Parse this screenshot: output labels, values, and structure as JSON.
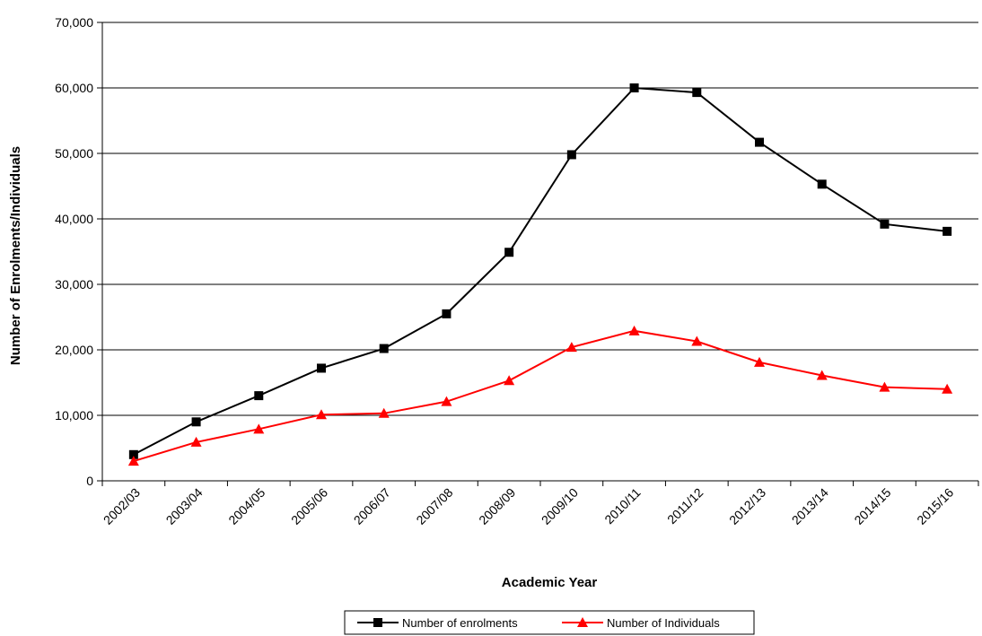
{
  "chart_data": {
    "type": "line",
    "title": "",
    "xlabel": "Academic Year",
    "ylabel": "Number of Enrolments/Individuals",
    "categories": [
      "2002/03",
      "2003/04",
      "2004/05",
      "2005/06",
      "2006/07",
      "2007/08",
      "2008/09",
      "2009/10",
      "2010/11",
      "2011/12",
      "2012/13",
      "2013/14",
      "2014/15",
      "2015/16"
    ],
    "ylim": [
      0,
      70000
    ],
    "yticks": [
      0,
      10000,
      20000,
      30000,
      40000,
      50000,
      60000,
      70000
    ],
    "ytick_labels": [
      "0",
      "10,000",
      "20,000",
      "30,000",
      "40,000",
      "50,000",
      "60,000",
      "70,000"
    ],
    "grid": true,
    "legend_position": "bottom",
    "series": [
      {
        "name": "Number of enrolments",
        "color": "#000000",
        "marker": "square",
        "values": [
          4000,
          9000,
          13000,
          17200,
          20200,
          25500,
          34900,
          49800,
          60000,
          59300,
          51700,
          45300,
          39200,
          38100
        ]
      },
      {
        "name": "Number of Individuals",
        "color": "#ff0000",
        "marker": "triangle",
        "values": [
          3000,
          5900,
          7900,
          10100,
          10300,
          12100,
          15300,
          20400,
          22900,
          21300,
          18100,
          16100,
          14300,
          14000
        ]
      }
    ]
  }
}
